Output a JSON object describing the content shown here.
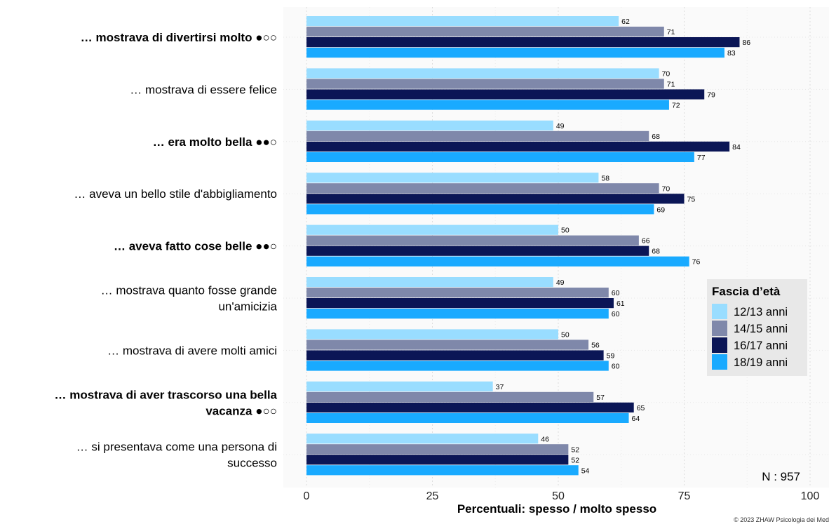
{
  "chart_data": {
    "type": "bar",
    "orientation": "horizontal",
    "categories": [
      {
        "lines": [
          "… mostrava di divertirsi molto ●○○"
        ],
        "bold": true
      },
      {
        "lines": [
          "… mostrava di essere felice"
        ],
        "bold": false
      },
      {
        "lines": [
          "… era molto bella ●●○"
        ],
        "bold": true
      },
      {
        "lines": [
          "… aveva un bello stile d'abbigliamento"
        ],
        "bold": false
      },
      {
        "lines": [
          "… aveva fatto cose belle ●●○"
        ],
        "bold": true
      },
      {
        "lines": [
          "… mostrava quanto fosse grande",
          "un'amicizia"
        ],
        "bold": false
      },
      {
        "lines": [
          "… mostrava di avere molti amici"
        ],
        "bold": false
      },
      {
        "lines": [
          "… mostrava di aver trascorso una bella",
          "vacanza ●○○"
        ],
        "bold": true
      },
      {
        "lines": [
          "… si presentava come una persona di",
          "successo"
        ],
        "bold": false
      }
    ],
    "series": [
      {
        "name": "12/13 anni",
        "color": "#99ddff",
        "values": [
          62,
          70,
          49,
          58,
          50,
          49,
          50,
          37,
          46
        ]
      },
      {
        "name": "14/15 anni",
        "color": "#7f88aa",
        "values": [
          71,
          71,
          68,
          70,
          66,
          60,
          56,
          57,
          52
        ]
      },
      {
        "name": "16/17 anni",
        "color": "#0b1656",
        "values": [
          86,
          79,
          84,
          75,
          68,
          61,
          59,
          65,
          52
        ]
      },
      {
        "name": "18/19 anni",
        "color": "#19aaff",
        "values": [
          83,
          72,
          77,
          69,
          76,
          60,
          60,
          64,
          54
        ]
      }
    ],
    "xlim": [
      0,
      100
    ],
    "xticks": [
      0,
      25,
      50,
      75,
      100
    ],
    "xlabel": "Percentuali:  spesso / molto spesso",
    "legend_title": "Fascia d’età",
    "legend_position": "right",
    "grid": true,
    "n_label": "N : 957",
    "copyright": "© 2023 ZHAW Psicologia dei Med"
  }
}
